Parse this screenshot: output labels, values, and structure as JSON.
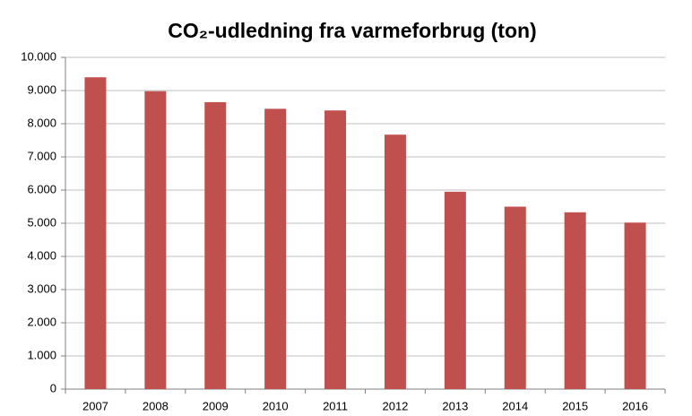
{
  "chart_data": {
    "type": "bar",
    "title": "CO₂-udledning fra varmeforbrug (ton)",
    "categories": [
      "2007",
      "2008",
      "2009",
      "2010",
      "2011",
      "2012",
      "2013",
      "2014",
      "2015",
      "2016"
    ],
    "values": [
      9400,
      8980,
      8650,
      8450,
      8400,
      7670,
      5950,
      5500,
      5330,
      5020
    ],
    "color": "#c0504d",
    "ylim": [
      0,
      10000
    ],
    "yticks": [
      0,
      {
        "value": 1000,
        "label": "1.000"
      },
      {
        "value": 2000,
        "label": "2.000"
      },
      {
        "value": 3000,
        "label": "3.000"
      },
      {
        "value": 4000,
        "label": "4.000"
      },
      {
        "value": 5000,
        "label": "5.000"
      },
      {
        "value": 6000,
        "label": "6.000"
      },
      {
        "value": 7000,
        "label": "7.000"
      },
      {
        "value": 8000,
        "label": "8.000"
      },
      {
        "value": 9000,
        "label": "9.000"
      },
      {
        "value": 10000,
        "label": "10.000"
      }
    ],
    "grid": true
  }
}
